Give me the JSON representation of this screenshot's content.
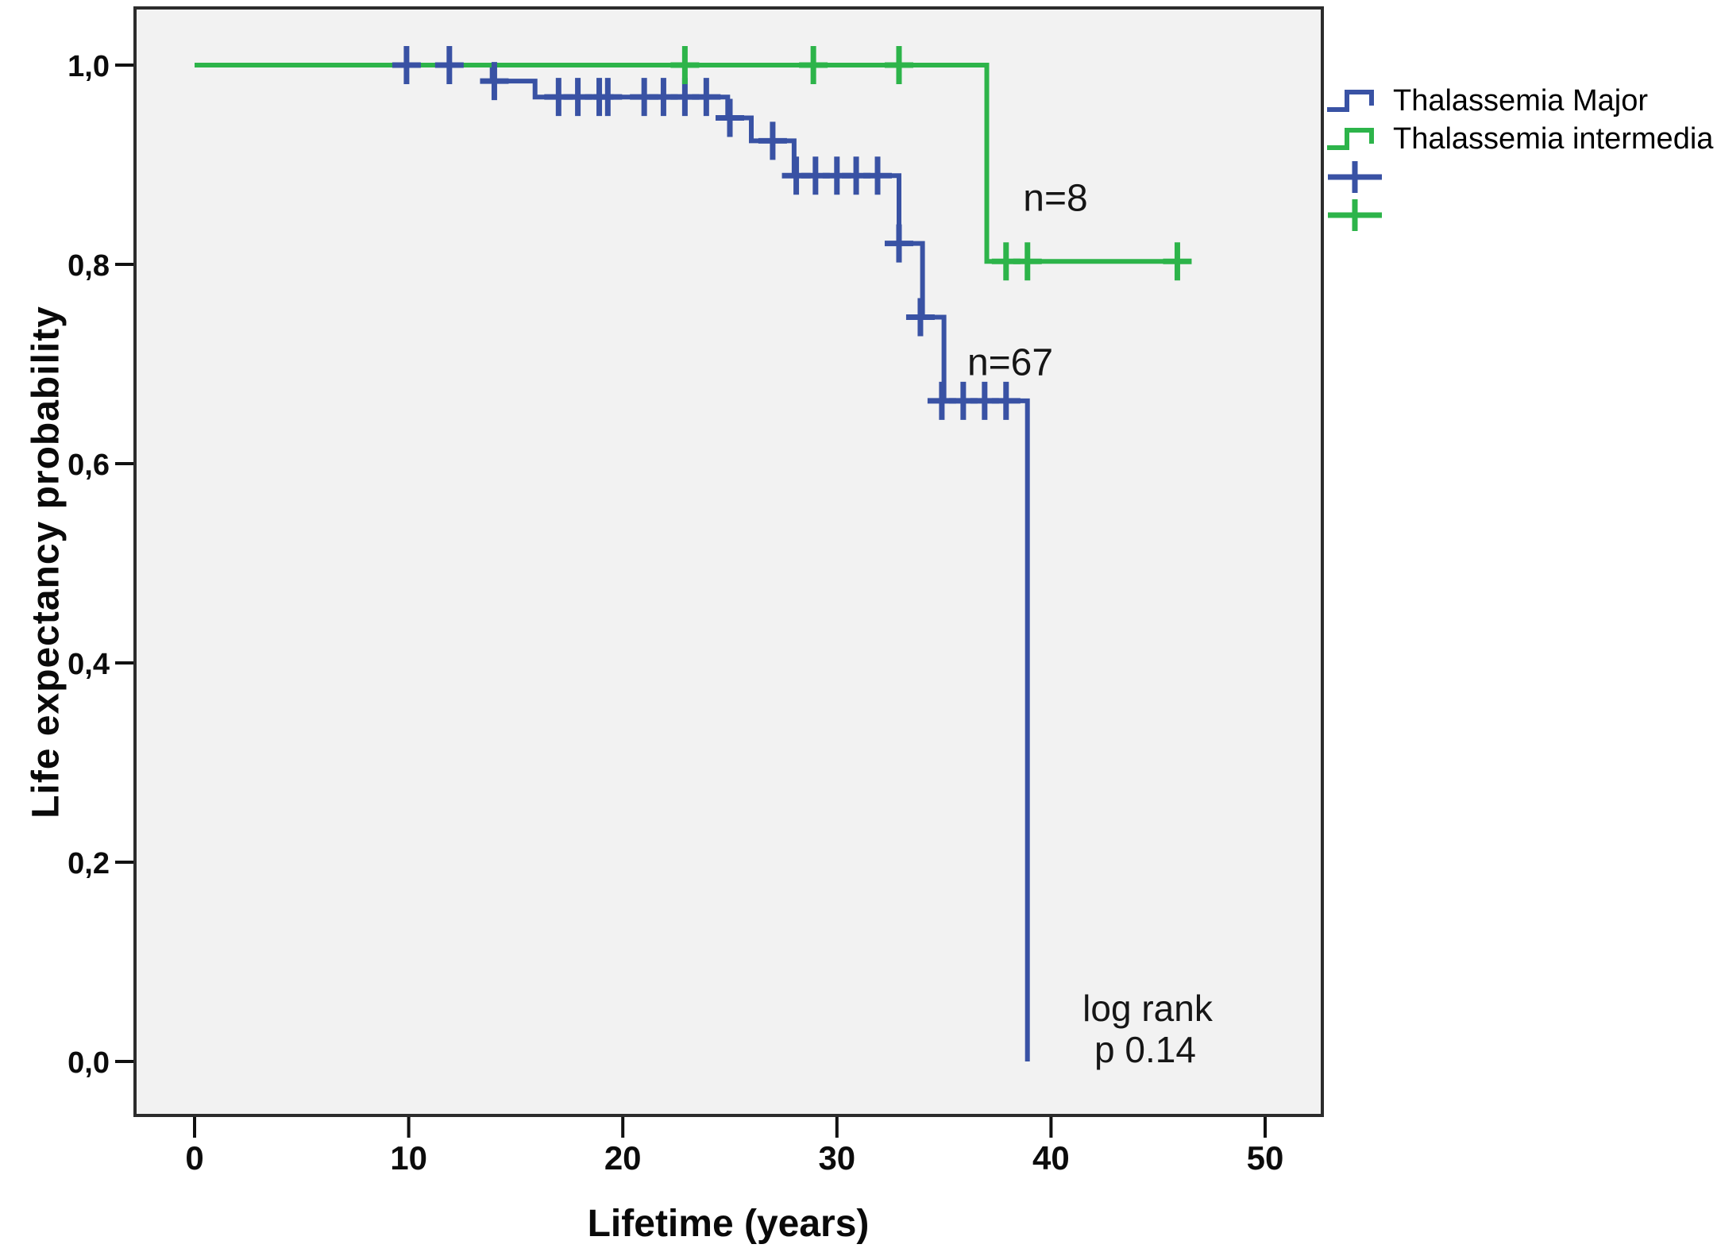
{
  "chart_data": {
    "type": "line",
    "subtype": "kaplan-meier-step",
    "title": "",
    "xlabel": "Lifetime (years)",
    "ylabel": "Life expectancy probability",
    "grid": false,
    "legend_position": "right-outside",
    "plot_bg": "#f2f2f2",
    "frame_color": "#2c2c2c",
    "tick_color": "#111111",
    "tick_label_color": "#0c0c0c",
    "xlim": [
      -2.8,
      52.7
    ],
    "ylim": [
      -0.054,
      1.057
    ],
    "x_ticks": [
      {
        "v": 0,
        "label": "0"
      },
      {
        "v": 10,
        "label": "10"
      },
      {
        "v": 20,
        "label": "20"
      },
      {
        "v": 30,
        "label": "30"
      },
      {
        "v": 40,
        "label": "40"
      },
      {
        "v": 50,
        "label": "50"
      }
    ],
    "y_ticks": [
      {
        "v": 0.0,
        "label": "0,0"
      },
      {
        "v": 0.2,
        "label": "0,2"
      },
      {
        "v": 0.4,
        "label": "0,4"
      },
      {
        "v": 0.6,
        "label": "0,6"
      },
      {
        "v": 0.8,
        "label": "0,8"
      },
      {
        "v": 1.0,
        "label": "1,0"
      }
    ],
    "series": [
      {
        "name": "Thalassemia Major",
        "color": "#3952a4",
        "n_label": "n=67",
        "steps": [
          [
            0,
            1.0
          ],
          [
            13.9,
            1.0
          ],
          [
            13.9,
            0.984
          ],
          [
            15.9,
            0.984
          ],
          [
            15.9,
            0.968
          ],
          [
            24.9,
            0.968
          ],
          [
            24.9,
            0.947
          ],
          [
            26.0,
            0.947
          ],
          [
            26.0,
            0.924
          ],
          [
            28.0,
            0.924
          ],
          [
            28.0,
            0.889
          ],
          [
            32.9,
            0.889
          ],
          [
            32.9,
            0.821
          ],
          [
            34.0,
            0.821
          ],
          [
            34.0,
            0.747
          ],
          [
            35.0,
            0.747
          ],
          [
            35.0,
            0.663
          ],
          [
            38.9,
            0.663
          ],
          [
            38.9,
            0.0
          ]
        ],
        "censored": [
          [
            9.9,
            1.0
          ],
          [
            11.9,
            1.0
          ],
          [
            14.0,
            0.984
          ],
          [
            17.0,
            0.968
          ],
          [
            17.9,
            0.968
          ],
          [
            18.9,
            0.968
          ],
          [
            19.3,
            0.968
          ],
          [
            21.0,
            0.968
          ],
          [
            21.9,
            0.968
          ],
          [
            22.9,
            0.968
          ],
          [
            23.9,
            0.968
          ],
          [
            25.0,
            0.947
          ],
          [
            27.0,
            0.924
          ],
          [
            28.1,
            0.889
          ],
          [
            29.0,
            0.889
          ],
          [
            30.0,
            0.889
          ],
          [
            30.9,
            0.889
          ],
          [
            31.9,
            0.889
          ],
          [
            32.9,
            0.821
          ],
          [
            33.9,
            0.747
          ],
          [
            34.9,
            0.663
          ],
          [
            35.9,
            0.663
          ],
          [
            36.9,
            0.663
          ],
          [
            37.9,
            0.663
          ]
        ]
      },
      {
        "name": "Thalassemia intermedia",
        "color": "#2db44a",
        "n_label": "n=8",
        "steps": [
          [
            0,
            1.0
          ],
          [
            37.0,
            1.0
          ],
          [
            37.0,
            0.803
          ],
          [
            46.4,
            0.803
          ]
        ],
        "censored": [
          [
            22.9,
            1.0
          ],
          [
            28.9,
            1.0
          ],
          [
            32.9,
            1.0
          ],
          [
            37.9,
            0.803
          ],
          [
            38.9,
            0.803
          ],
          [
            45.9,
            0.803
          ]
        ]
      }
    ],
    "annotations": [
      {
        "text": "n=8",
        "x": 40.2,
        "y": 0.866,
        "size": "big"
      },
      {
        "text": "n=67",
        "x": 38.1,
        "y": 0.701,
        "size": "big"
      },
      {
        "text": "log rank",
        "x": 44.5,
        "y": 0.053,
        "size": "small"
      },
      {
        "text": "p 0.14",
        "x": 44.4,
        "y": 0.012,
        "size": "small"
      }
    ]
  },
  "legend": {
    "items": [
      {
        "label": "Thalassemia Major",
        "type": "step",
        "color": "#3952a4"
      },
      {
        "label": "Thalassemia intermedia",
        "type": "step",
        "color": "#2db44a"
      },
      {
        "label": "",
        "type": "censor",
        "color": "#3952a4"
      },
      {
        "label": "",
        "type": "censor",
        "color": "#2db44a"
      }
    ]
  }
}
